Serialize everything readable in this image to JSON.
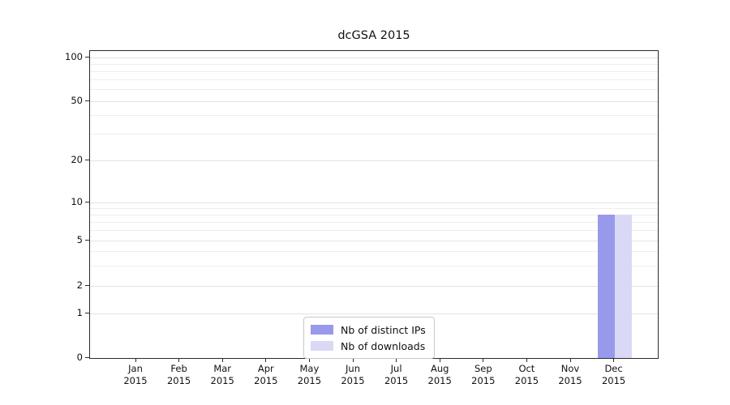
{
  "chart_data": {
    "type": "bar",
    "title": "dcGSA 2015",
    "x_tick_months": [
      "Jan",
      "Feb",
      "Mar",
      "Apr",
      "May",
      "Jun",
      "Jul",
      "Aug",
      "Sep",
      "Oct",
      "Nov",
      "Dec"
    ],
    "x_tick_year": "2015",
    "series": [
      {
        "name": "Nb of distinct IPs",
        "color": "#9999ec",
        "values": [
          0,
          0,
          0,
          0,
          0,
          0,
          0,
          0,
          0,
          0,
          0,
          8
        ]
      },
      {
        "name": "Nb of downloads",
        "color": "#d9d9f6",
        "values": [
          0,
          0,
          0,
          0,
          0,
          0,
          0,
          0,
          0,
          0,
          0,
          8
        ]
      }
    ],
    "yscale": "symlog",
    "ylim": [
      0,
      110
    ],
    "yticks_major": [
      0,
      1,
      2,
      5,
      10,
      20,
      50,
      100
    ],
    "yticks_minor": [
      3,
      4,
      6,
      7,
      8,
      9,
      30,
      40,
      60,
      70,
      80,
      90
    ],
    "grid": "horizontal",
    "legend_position": "bottom-center"
  },
  "colors": {
    "grid_major": "#e3e3e3",
    "grid_minor": "#eeeeee",
    "axis": "#2b2b2b",
    "text": "#111111",
    "background": "#ffffff"
  }
}
